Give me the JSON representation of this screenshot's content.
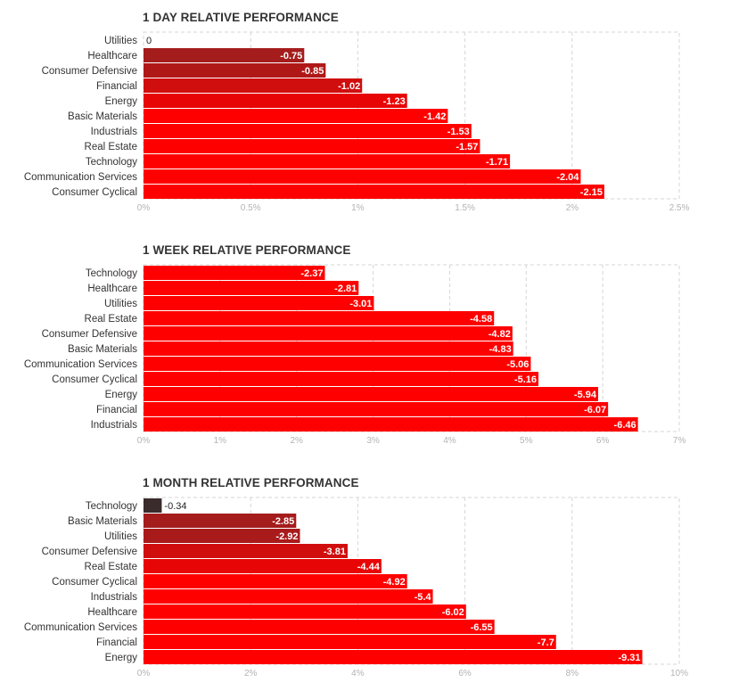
{
  "chart_data": [
    {
      "type": "bar",
      "orientation": "horizontal",
      "title": "1 DAY RELATIVE PERFORMANCE",
      "categories": [
        "Utilities",
        "Healthcare",
        "Consumer Defensive",
        "Financial",
        "Energy",
        "Basic Materials",
        "Industrials",
        "Real Estate",
        "Technology",
        "Communication Services",
        "Consumer Cyclical"
      ],
      "values": [
        0,
        -0.75,
        -0.85,
        -1.02,
        -1.23,
        -1.42,
        -1.53,
        -1.57,
        -1.71,
        -2.04,
        -2.15
      ],
      "data_labels": [
        "0",
        "-0.75",
        "-0.85",
        "-1.02",
        "-1.23",
        "-1.42",
        "-1.53",
        "-1.57",
        "-1.71",
        "-2.04",
        "-2.15"
      ],
      "colors": [
        "#ff0000",
        "#a51c1c",
        "#b01818",
        "#d00e0e",
        "#e80505",
        "#ff0000",
        "#ff0000",
        "#ff0000",
        "#ff0000",
        "#ff0000",
        "#ff0000"
      ],
      "xlim": [
        0,
        2.5
      ],
      "ticks": [
        0,
        0.5,
        1,
        1.5,
        2,
        2.5
      ],
      "tick_labels": [
        "0%",
        "0.5%",
        "1%",
        "1.5%",
        "2%",
        "2.5%"
      ],
      "grid": true
    },
    {
      "type": "bar",
      "orientation": "horizontal",
      "title": "1 WEEK RELATIVE PERFORMANCE",
      "categories": [
        "Technology",
        "Healthcare",
        "Utilities",
        "Real Estate",
        "Consumer Defensive",
        "Basic Materials",
        "Communication Services",
        "Consumer Cyclical",
        "Energy",
        "Financial",
        "Industrials"
      ],
      "values": [
        -2.37,
        -2.81,
        -3.01,
        -4.58,
        -4.82,
        -4.83,
        -5.06,
        -5.16,
        -5.94,
        -6.07,
        -6.46
      ],
      "data_labels": [
        "-2.37",
        "-2.81",
        "-3.01",
        "-4.58",
        "-4.82",
        "-4.83",
        "-5.06",
        "-5.16",
        "-5.94",
        "-6.07",
        "-6.46"
      ],
      "colors": [
        "#ff0000",
        "#ff0000",
        "#ff0000",
        "#ff0000",
        "#ff0000",
        "#ff0000",
        "#ff0000",
        "#ff0000",
        "#ff0000",
        "#ff0000",
        "#ff0000"
      ],
      "xlim": [
        0,
        7
      ],
      "ticks": [
        0,
        1,
        2,
        3,
        4,
        5,
        6,
        7
      ],
      "tick_labels": [
        "0%",
        "1%",
        "2%",
        "3%",
        "4%",
        "5%",
        "6%",
        "7%"
      ],
      "grid": true
    },
    {
      "type": "bar",
      "orientation": "horizontal",
      "title": "1 MONTH RELATIVE PERFORMANCE",
      "categories": [
        "Technology",
        "Basic Materials",
        "Utilities",
        "Consumer Defensive",
        "Real Estate",
        "Consumer Cyclical",
        "Industrials",
        "Healthcare",
        "Communication Services",
        "Financial",
        "Energy"
      ],
      "values": [
        -0.34,
        -2.85,
        -2.92,
        -3.81,
        -4.44,
        -4.92,
        -5.4,
        -6.02,
        -6.55,
        -7.7,
        -9.31
      ],
      "data_labels": [
        "-0.34",
        "-2.85",
        "-2.92",
        "-3.81",
        "-4.44",
        "-4.92",
        "-5.4",
        "-6.02",
        "-6.55",
        "-7.7",
        "-9.31"
      ],
      "colors": [
        "#3a2c2c",
        "#a51c1c",
        "#a91b1b",
        "#d00e0e",
        "#e80505",
        "#ff0000",
        "#ff0000",
        "#ff0000",
        "#ff0000",
        "#ff0000",
        "#ff0000"
      ],
      "xlim": [
        0,
        10
      ],
      "ticks": [
        0,
        2,
        4,
        6,
        8,
        10
      ],
      "tick_labels": [
        "0%",
        "2%",
        "4%",
        "6%",
        "8%",
        "10%"
      ],
      "grid": true
    }
  ]
}
